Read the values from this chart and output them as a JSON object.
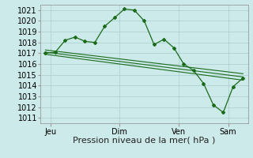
{
  "background_color": "#cdeaea",
  "grid_color": "#aacccc",
  "line_color": "#1a6b1a",
  "marker_color": "#1a6b1a",
  "xlabel_text": "Pression niveau de la mer( hPa )",
  "ylim": [
    1010.5,
    1021.5
  ],
  "yticks": [
    1011,
    1012,
    1013,
    1014,
    1015,
    1016,
    1017,
    1018,
    1019,
    1020,
    1021
  ],
  "x_tick_labels": [
    "Jeu",
    "Dim",
    "Ven",
    "Sam"
  ],
  "x_tick_positions": [
    1,
    8,
    14,
    19
  ],
  "xlim": [
    0,
    21
  ],
  "series_main_x": [
    0.5,
    1.5,
    2.5,
    3.5,
    4.5,
    5.5,
    6.5,
    7.5,
    8.5,
    9.5,
    10.5,
    11.5,
    12.5,
    13.5,
    14.5,
    15.5,
    16.5,
    17.5,
    18.5,
    19.5,
    20.5
  ],
  "series_main_y": [
    1017.0,
    1017.1,
    1018.2,
    1018.5,
    1018.1,
    1018.0,
    1019.5,
    1020.3,
    1021.1,
    1021.0,
    1020.0,
    1017.8,
    1018.3,
    1017.5,
    1016.0,
    1015.4,
    1014.2,
    1012.2,
    1011.5,
    1013.9,
    1014.7
  ],
  "linear_lines": [
    {
      "x": [
        0.5,
        20.5
      ],
      "y": [
        1017.1,
        1014.8
      ]
    },
    {
      "x": [
        0.5,
        20.5
      ],
      "y": [
        1017.3,
        1015.1
      ]
    },
    {
      "x": [
        0.5,
        20.5
      ],
      "y": [
        1016.9,
        1014.5
      ]
    }
  ],
  "ylabel_fontsize": 7,
  "xlabel_fontsize": 8,
  "tick_fontsize": 7
}
